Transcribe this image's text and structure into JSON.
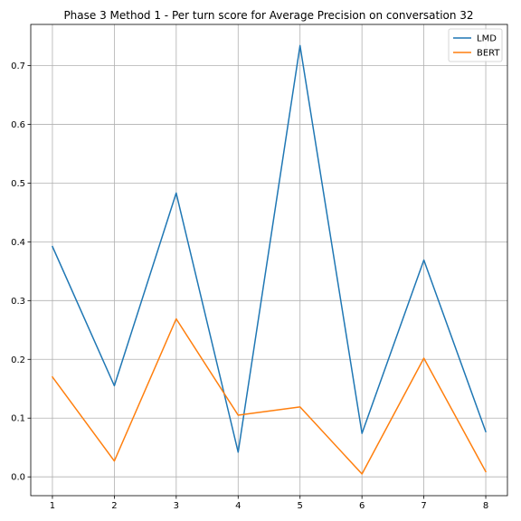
{
  "chart_data": {
    "type": "line",
    "title": "Phase 3 Method 1 - Per turn score for Average Precision on conversation 32",
    "xlabel": "",
    "ylabel": "",
    "x": [
      1,
      2,
      3,
      4,
      5,
      6,
      7,
      8
    ],
    "xlim": [
      0.65,
      8.35
    ],
    "ylim": [
      -0.032,
      0.77
    ],
    "xticks": [
      1,
      2,
      3,
      4,
      5,
      6,
      7,
      8
    ],
    "yticks": [
      0.0,
      0.1,
      0.2,
      0.3,
      0.4,
      0.5,
      0.6,
      0.7
    ],
    "ytick_labels": [
      "0.0",
      "0.1",
      "0.2",
      "0.3",
      "0.4",
      "0.5",
      "0.6",
      "0.7"
    ],
    "grid": true,
    "legend_position": "upper-right",
    "series": [
      {
        "name": "LMD",
        "color": "#1f77b4",
        "values": [
          0.392,
          0.155,
          0.483,
          0.042,
          0.734,
          0.074,
          0.369,
          0.077
        ]
      },
      {
        "name": "BERT",
        "color": "#ff7f0e",
        "values": [
          0.17,
          0.027,
          0.269,
          0.105,
          0.119,
          0.005,
          0.202,
          0.009
        ]
      }
    ]
  }
}
